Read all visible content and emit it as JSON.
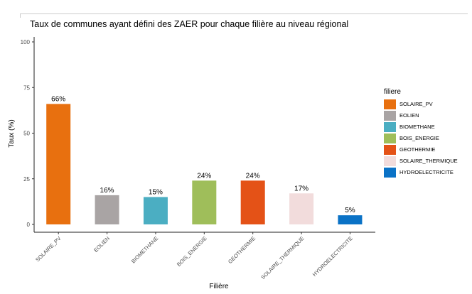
{
  "chart_data": {
    "type": "bar",
    "title": "Taux de communes ayant défini des ZAER pour chaque filière au niveau régional",
    "xlabel": "Filière",
    "ylabel": "Taux (%)",
    "ylim": [
      0,
      100
    ],
    "yticks": [
      "0",
      "25",
      "50",
      "75",
      "100"
    ],
    "categories": [
      "SOLAIRE_PV",
      "EOLIEN",
      "BIOMETHANE",
      "BOIS_ENERGIE",
      "GEOTHERMIE",
      "SOLAIRE_THERMIQUE",
      "HYDROELECTRICITE"
    ],
    "values": [
      66,
      16,
      15,
      24,
      24,
      17,
      5
    ],
    "data_labels": [
      "66%",
      "16%",
      "15%",
      "24%",
      "24%",
      "17%",
      "5%"
    ],
    "colors": [
      "#E8700F",
      "#A9A4A4",
      "#4BAEC2",
      "#9FBE5A",
      "#E45217",
      "#F2DCDC",
      "#0A72C6"
    ],
    "grid": false,
    "legend": {
      "title": "filiere",
      "position": "right",
      "entries": [
        "SOLAIRE_PV",
        "EOLIEN",
        "BIOMETHANE",
        "BOIS_ENERGIE",
        "GEOTHERMIE",
        "SOLAIRE_THERMIQUE",
        "HYDROELECTRICITE"
      ]
    }
  }
}
